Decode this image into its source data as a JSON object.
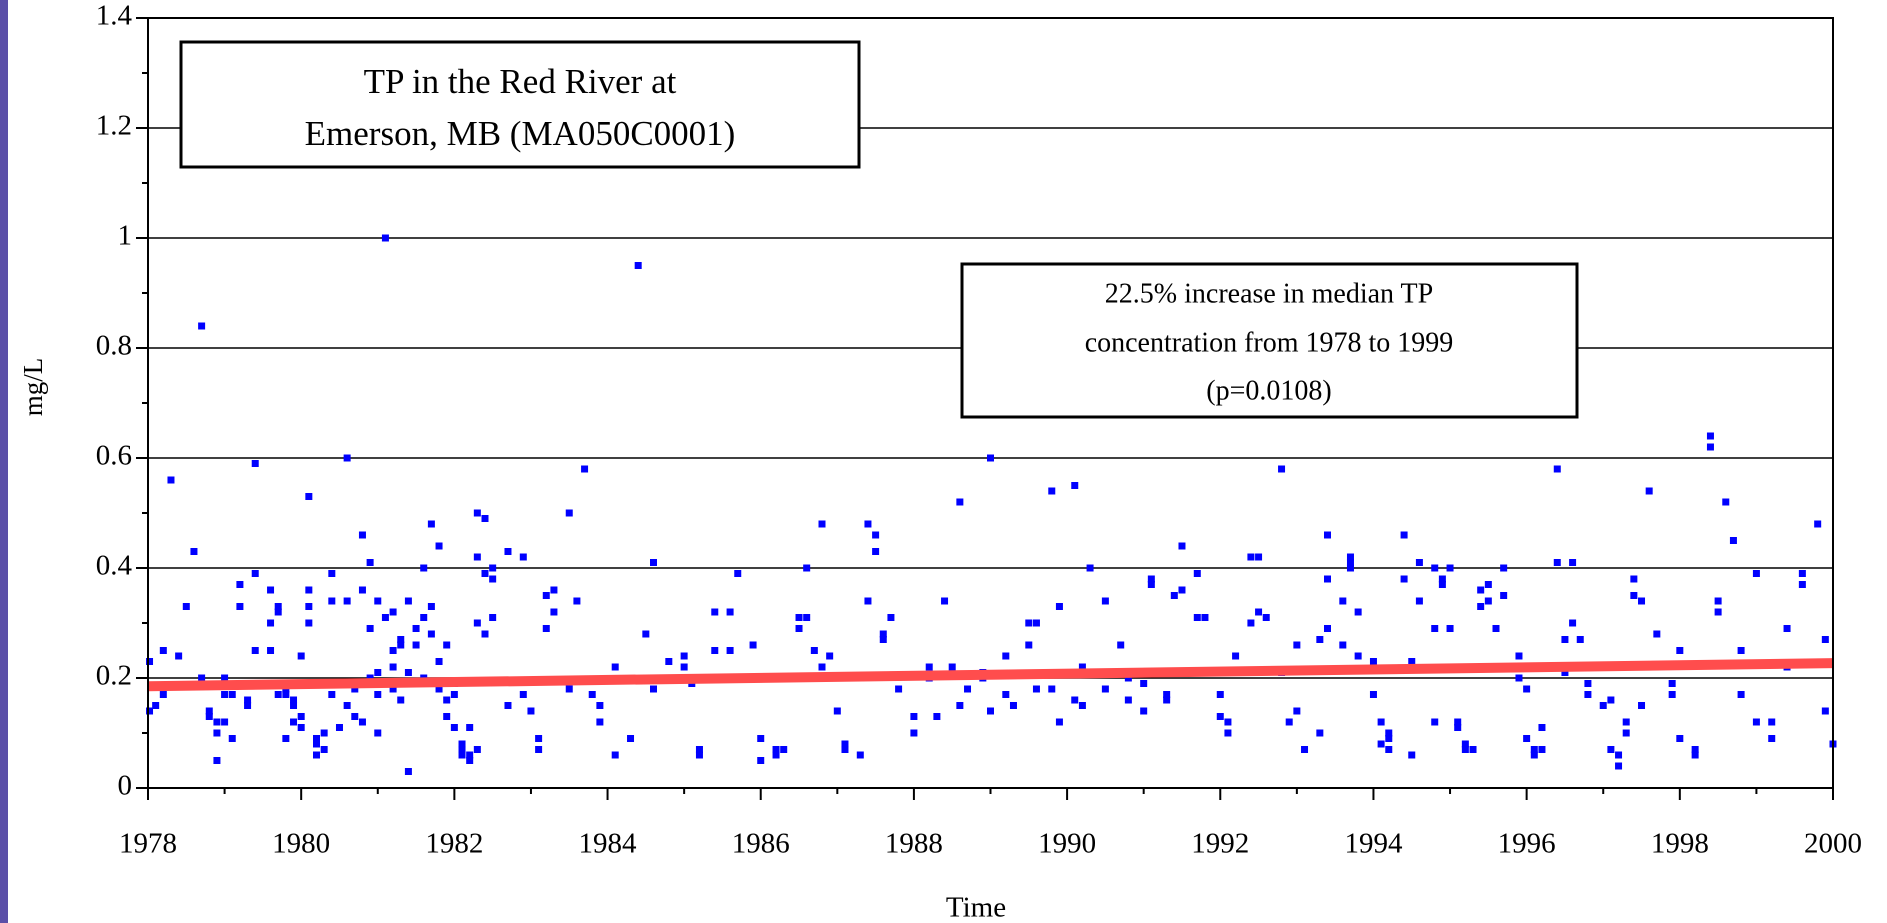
{
  "chart_data": {
    "type": "scatter",
    "title": [
      "TP in the Red River at",
      "Emerson, MB (MA050C0001)"
    ],
    "annotation": [
      "22.5% increase in median TP",
      "concentration from 1978 to 1999",
      "(p=0.0108)"
    ],
    "x_label": "Time",
    "y_label": "mg/L",
    "xlim": [
      1978,
      2000
    ],
    "xticks": [
      1978,
      1980,
      1982,
      1984,
      1986,
      1988,
      1990,
      1992,
      1994,
      1996,
      1998,
      2000
    ],
    "x_minor_ticks": [
      1979,
      1981,
      1983,
      1985,
      1987,
      1989,
      1991,
      1993,
      1995,
      1997,
      1999
    ],
    "ylim": [
      0,
      1.4
    ],
    "yticks": [
      0,
      0.2,
      0.4,
      0.6,
      0.8,
      1,
      1.2,
      1.4
    ],
    "y_minor_ticks": [
      0.1,
      0.3,
      0.5,
      0.7,
      0.9,
      1.1,
      1.3
    ],
    "grid": true,
    "series": [
      {
        "color": "#0000ff",
        "x": [
          1978.02,
          1978.02,
          1978.1,
          1978.2,
          1978.2,
          1978.3,
          1978.4,
          1978.5,
          1978.6,
          1978.7,
          1978.7,
          1978.8,
          1978.8,
          1978.9,
          1978.9,
          1978.9,
          1979,
          1979,
          1979,
          1979.1,
          1979.1,
          1979.2,
          1979.2,
          1979.2,
          1979.3,
          1979.3,
          1979.4,
          1979.4,
          1979.4,
          1979.6,
          1979.6,
          1979.6,
          1979.7,
          1979.7,
          1979.7,
          1979.8,
          1979.8,
          1979.8,
          1979.9,
          1979.9,
          1979.9,
          1980,
          1980,
          1980,
          1980.1,
          1980.1,
          1980.1,
          1980.1,
          1980.2,
          1980.2,
          1980.2,
          1980.3,
          1980.3,
          1980.4,
          1980.4,
          1980.4,
          1980.5,
          1980.5,
          1980.6,
          1980.6,
          1980.6,
          1980.6,
          1980.7,
          1980.7,
          1980.8,
          1980.8,
          1980.8,
          1980.9,
          1980.9,
          1980.9,
          1981,
          1981,
          1981,
          1981,
          1981.1,
          1981.1,
          1981.2,
          1981.2,
          1981.2,
          1981.2,
          1981.3,
          1981.3,
          1981.3,
          1981.4,
          1981.4,
          1981.4,
          1981.5,
          1981.5,
          1981.5,
          1981.6,
          1981.6,
          1981.6,
          1981.7,
          1981.7,
          1981.7,
          1981.8,
          1981.8,
          1981.8,
          1981.9,
          1981.9,
          1981.9,
          1982,
          1982,
          1982,
          1982.1,
          1982.1,
          1982.1,
          1982.2,
          1982.2,
          1982.2,
          1982.3,
          1982.3,
          1982.3,
          1982.3,
          1982.4,
          1982.4,
          1982.4,
          1982.5,
          1982.5,
          1982.5,
          1982.7,
          1982.7,
          1982.9,
          1982.9,
          1983,
          1983.1,
          1983.1,
          1983.2,
          1983.2,
          1983.3,
          1983.3,
          1983.5,
          1983.5,
          1983.6,
          1983.7,
          1983.8,
          1983.9,
          1983.9,
          1984.1,
          1984.1,
          1984.3,
          1984.4,
          1984.5,
          1984.6,
          1984.6,
          1984.8,
          1985,
          1985,
          1985.1,
          1985.2,
          1985.2,
          1985.4,
          1985.4,
          1985.6,
          1985.6,
          1985.7,
          1985.9,
          1986,
          1986,
          1986.2,
          1986.2,
          1986.3,
          1986.5,
          1986.5,
          1986.6,
          1986.6,
          1986.7,
          1986.8,
          1986.8,
          1986.9,
          1987,
          1987.1,
          1987.1,
          1987.3,
          1987.4,
          1987.4,
          1987.5,
          1987.5,
          1987.6,
          1987.6,
          1987.7,
          1987.8,
          1988,
          1988,
          1988.2,
          1988.2,
          1988.3,
          1988.4,
          1988.5,
          1988.6,
          1988.6,
          1988.7,
          1988.9,
          1988.9,
          1989,
          1989,
          1989.2,
          1989.2,
          1989.3,
          1989.5,
          1989.5,
          1989.6,
          1989.6,
          1989.8,
          1989.8,
          1989.9,
          1989.9,
          1990.1,
          1990.1,
          1990.2,
          1990.2,
          1990.3,
          1990.5,
          1990.5,
          1990.7,
          1990.8,
          1990.8,
          1991,
          1991,
          1991.1,
          1991.1,
          1991.3,
          1991.3,
          1991.4,
          1991.5,
          1991.5,
          1991.7,
          1991.7,
          1991.8,
          1992,
          1992,
          1992.1,
          1992.1,
          1992.2,
          1992.4,
          1992.4,
          1992.5,
          1992.5,
          1992.6,
          1992.8,
          1992.8,
          1992.9,
          1993,
          1993,
          1993.1,
          1993.3,
          1993.3,
          1993.4,
          1993.4,
          1993.4,
          1993.6,
          1993.6,
          1993.7,
          1993.7,
          1993.7,
          1993.8,
          1993.8,
          1994,
          1994,
          1994.1,
          1994.1,
          1994.2,
          1994.2,
          1994.2,
          1994.4,
          1994.4,
          1994.5,
          1994.5,
          1994.6,
          1994.6,
          1994.8,
          1994.8,
          1994.8,
          1994.9,
          1994.9,
          1995,
          1995,
          1995.1,
          1995.1,
          1995.2,
          1995.2,
          1995.3,
          1995.4,
          1995.4,
          1995.5,
          1995.5,
          1995.6,
          1995.7,
          1995.7,
          1995.9,
          1995.9,
          1996,
          1996,
          1996.1,
          1996.1,
          1996.2,
          1996.2,
          1996.4,
          1996.4,
          1996.5,
          1996.5,
          1996.6,
          1996.6,
          1996.7,
          1996.7,
          1996.8,
          1996.8,
          1997,
          1997.1,
          1997.1,
          1997.2,
          1997.2,
          1997.3,
          1997.3,
          1997.4,
          1997.4,
          1997.5,
          1997.5,
          1997.6,
          1997.7,
          1997.9,
          1997.9,
          1998,
          1998,
          1998.2,
          1998.2,
          1998.4,
          1998.4,
          1998.5,
          1998.5,
          1998.6,
          1998.7,
          1998.8,
          1998.8,
          1999,
          1999,
          1999.2,
          1999.2,
          1999.4,
          1999.4,
          1999.6,
          1999.6,
          1999.8,
          1999.9,
          1999.9,
          2000
        ],
        "values": [
          0.23,
          0.14,
          0.15,
          0.17,
          0.25,
          0.56,
          0.24,
          0.33,
          0.43,
          0.2,
          0.84,
          0.14,
          0.13,
          0.1,
          0.05,
          0.12,
          0.2,
          0.17,
          0.12,
          0.09,
          0.17,
          0.33,
          0.37,
          0.19,
          0.16,
          0.15,
          0.25,
          0.39,
          0.59,
          0.3,
          0.25,
          0.36,
          0.32,
          0.33,
          0.17,
          0.09,
          0.18,
          0.17,
          0.12,
          0.15,
          0.16,
          0.24,
          0.11,
          0.13,
          0.36,
          0.3,
          0.33,
          0.53,
          0.06,
          0.08,
          0.09,
          0.1,
          0.07,
          0.34,
          0.39,
          0.17,
          0.19,
          0.11,
          0.34,
          0.6,
          0.15,
          0.19,
          0.13,
          0.18,
          0.36,
          0.46,
          0.12,
          0.29,
          0.41,
          0.2,
          0.17,
          0.1,
          0.21,
          0.34,
          1,
          0.31,
          0.32,
          0.25,
          0.22,
          0.18,
          0.27,
          0.26,
          0.16,
          0.03,
          0.21,
          0.34,
          0.19,
          0.29,
          0.26,
          0.2,
          0.4,
          0.31,
          0.48,
          0.33,
          0.28,
          0.23,
          0.44,
          0.18,
          0.13,
          0.16,
          0.26,
          0.19,
          0.17,
          0.11,
          0.08,
          0.06,
          0.07,
          0.05,
          0.11,
          0.06,
          0.07,
          0.3,
          0.42,
          0.5,
          0.49,
          0.39,
          0.28,
          0.4,
          0.38,
          0.31,
          0.43,
          0.15,
          0.42,
          0.17,
          0.14,
          0.09,
          0.07,
          0.35,
          0.29,
          0.36,
          0.32,
          0.18,
          0.5,
          0.34,
          0.58,
          0.17,
          0.12,
          0.15,
          0.22,
          0.06,
          0.09,
          0.95,
          0.28,
          0.18,
          0.41,
          0.23,
          0.24,
          0.22,
          0.19,
          0.07,
          0.06,
          0.32,
          0.25,
          0.32,
          0.25,
          0.39,
          0.26,
          0.09,
          0.05,
          0.07,
          0.06,
          0.07,
          0.29,
          0.31,
          0.31,
          0.4,
          0.25,
          0.22,
          0.48,
          0.24,
          0.14,
          0.08,
          0.07,
          0.06,
          0.34,
          0.48,
          0.46,
          0.43,
          0.27,
          0.28,
          0.31,
          0.18,
          0.1,
          0.13,
          0.2,
          0.22,
          0.13,
          0.34,
          0.22,
          0.52,
          0.15,
          0.18,
          0.2,
          0.21,
          0.14,
          0.6,
          0.24,
          0.17,
          0.15,
          0.3,
          0.26,
          0.3,
          0.18,
          0.54,
          0.18,
          0.33,
          0.12,
          0.55,
          0.16,
          0.22,
          0.15,
          0.4,
          0.34,
          0.18,
          0.26,
          0.2,
          0.16,
          0.19,
          0.14,
          0.37,
          0.38,
          0.16,
          0.17,
          0.35,
          0.44,
          0.36,
          0.39,
          0.31,
          0.31,
          0.17,
          0.13,
          0.12,
          0.1,
          0.24,
          0.42,
          0.3,
          0.32,
          0.42,
          0.31,
          0.58,
          0.21,
          0.12,
          0.26,
          0.14,
          0.07,
          0.1,
          0.27,
          0.46,
          0.38,
          0.29,
          0.34,
          0.26,
          0.4,
          0.42,
          0.41,
          0.24,
          0.32,
          0.17,
          0.23,
          0.12,
          0.08,
          0.07,
          0.1,
          0.09,
          0.46,
          0.38,
          0.23,
          0.06,
          0.41,
          0.34,
          0.29,
          0.12,
          0.4,
          0.37,
          0.38,
          0.4,
          0.29,
          0.12,
          0.11,
          0.08,
          0.07,
          0.07,
          0.36,
          0.33,
          0.37,
          0.34,
          0.29,
          0.4,
          0.35,
          0.24,
          0.2,
          0.18,
          0.09,
          0.07,
          0.06,
          0.07,
          0.11,
          0.58,
          0.41,
          0.27,
          0.21,
          0.3,
          0.41,
          0.27,
          0.22,
          0.17,
          0.19,
          0.15,
          0.16,
          0.07,
          0.04,
          0.06,
          0.1,
          0.12,
          0.38,
          0.35,
          0.15,
          0.34,
          0.54,
          0.28,
          0.19,
          0.17,
          0.25,
          0.09,
          0.06,
          0.07,
          0.62,
          0.64,
          0.32,
          0.34,
          0.52,
          0.45,
          0.25,
          0.17,
          0.39,
          0.12,
          0.12,
          0.09,
          0.29,
          0.22,
          0.37,
          0.39,
          0.48,
          0.27,
          0.14,
          0.08
        ]
      },
      {
        "type": "line",
        "color": "#ff4d4d",
        "x": [
          1978,
          2000
        ],
        "values": [
          0.185,
          0.227
        ]
      }
    ]
  }
}
